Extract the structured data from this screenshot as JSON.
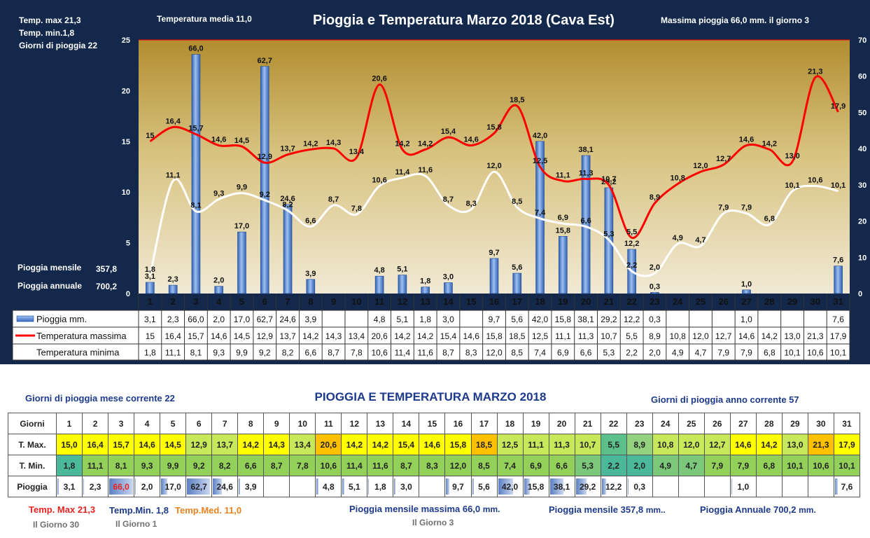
{
  "top_panel": {
    "title": "Pioggia e Temperatura Marzo 2018 (Cava Est)",
    "temp_max": "Temp. max  21,3",
    "temp_min": "Temp.  min.1,8",
    "rain_days": "Giorni  di pioggia   22",
    "temp_avg": "Temperatura media  11,0",
    "max_rain": "Massima pioggia  66,0 mm.  il giorno   3",
    "monthly_rain_label": "Pioggia mensile",
    "monthly_rain_value": "357,8",
    "annual_rain_label": "Pioggia annuale",
    "annual_rain_value": "700,2"
  },
  "chart_data": {
    "type": "bar",
    "title": "Pioggia e Temperatura Marzo 2018 (Cava Est)",
    "x": [
      "1",
      "2",
      "3",
      "4",
      "5",
      "6",
      "7",
      "8",
      "9",
      "10",
      "11",
      "12",
      "13",
      "14",
      "15",
      "16",
      "17",
      "18",
      "19",
      "20",
      "21",
      "22",
      "23",
      "24",
      "25",
      "26",
      "27",
      "28",
      "29",
      "30",
      "31"
    ],
    "left_axis": {
      "min": 0,
      "max": 25,
      "ticks": [
        "0",
        "5",
        "10",
        "15",
        "20",
        "25"
      ]
    },
    "right_axis": {
      "min": 0,
      "max": 70,
      "ticks": [
        "0",
        "10",
        "20",
        "30",
        "40",
        "50",
        "60",
        "70"
      ]
    },
    "series": [
      {
        "name": "Pioggia mm.",
        "type": "bar",
        "axis": "right",
        "color": "#4f7fd0",
        "values": [
          3.1,
          2.3,
          66.0,
          2.0,
          17.0,
          62.7,
          24.6,
          3.9,
          null,
          null,
          4.8,
          5.1,
          1.8,
          3.0,
          null,
          9.7,
          5.6,
          42.0,
          15.8,
          38.1,
          29.2,
          12.2,
          0.3,
          null,
          null,
          null,
          1.0,
          null,
          null,
          null,
          7.6
        ],
        "labels": [
          "3,1",
          "2,3",
          "66,0",
          "2,0",
          "17,0",
          "62,7",
          "24,6",
          "3,9",
          "",
          "",
          "4,8",
          "5,1",
          "1,8",
          "3,0",
          "",
          "9,7",
          "5,6",
          "42,0",
          "15,8",
          "38,1",
          "29,2",
          "12,2",
          "0,3",
          "",
          "",
          "",
          "1,0",
          "",
          "",
          "",
          "7,6"
        ]
      },
      {
        "name": "Temperatura massima",
        "type": "line",
        "axis": "left",
        "color": "#ff0000",
        "values": [
          15,
          16.4,
          15.7,
          14.6,
          14.5,
          12.9,
          13.7,
          14.2,
          14.3,
          13.4,
          20.6,
          14.2,
          14.2,
          15.4,
          14.6,
          15.8,
          18.5,
          12.5,
          11.1,
          11.3,
          10.7,
          5.5,
          8.9,
          10.8,
          12.0,
          12.7,
          14.6,
          14.2,
          13.0,
          21.3,
          17.9
        ],
        "labels": [
          "15",
          "16,4",
          "15,7",
          "14,6",
          "14,5",
          "12,9",
          "13,7",
          "14,2",
          "14,3",
          "13,4",
          "20,6",
          "14,2",
          "14,2",
          "15,4",
          "14,6",
          "15,8",
          "18,5",
          "12,5",
          "11,1",
          "11,3",
          "10,7",
          "5,5",
          "8,9",
          "10,8",
          "12,0",
          "12,7",
          "14,6",
          "14,2",
          "13,0",
          "21,3",
          "17,9"
        ]
      },
      {
        "name": "Temperatura minima",
        "type": "line",
        "axis": "left",
        "color": "#ffffff",
        "values": [
          1.8,
          11.1,
          8.1,
          9.3,
          9.9,
          9.2,
          8.2,
          6.6,
          8.7,
          7.8,
          10.6,
          11.4,
          11.6,
          8.7,
          8.3,
          12.0,
          8.5,
          7.4,
          6.9,
          6.6,
          5.3,
          2.2,
          2.0,
          4.9,
          4.7,
          7.9,
          7.9,
          6.8,
          10.1,
          10.6,
          10.1
        ],
        "labels": [
          "1,8",
          "11,1",
          "8,1",
          "9,3",
          "9,9",
          "9,2",
          "8,2",
          "6,6",
          "8,7",
          "7,8",
          "10,6",
          "11,4",
          "11,6",
          "8,7",
          "8,3",
          "12,0",
          "8,5",
          "7,4",
          "6,9",
          "6,6",
          "5,3",
          "2,2",
          "2,0",
          "4,9",
          "4,7",
          "7,9",
          "7,9",
          "6,8",
          "10,1",
          "10,6",
          "10,1"
        ]
      }
    ],
    "colors": {
      "background": "#13284a",
      "plot_top": "#b18d2f",
      "plot_bottom": "#f1e9d4",
      "rain": "#4f7fd0",
      "tmax": "#ff0000",
      "tmin": "#ffffff"
    }
  },
  "bottom_panel": {
    "title": "PIOGGIA E TEMPERATURA MARZO 2018",
    "rain_days_month": "Giorni di pioggia  mese corrente    22",
    "rain_days_year": "Giorni di pioggia  anno corrente   57",
    "row_labels": {
      "days": "Giorni",
      "tmax": "T. Max.",
      "tmin": "T. Min.",
      "rain": "Pioggia"
    },
    "tmax_cells": [
      "15,0",
      "16,4",
      "15,7",
      "14,6",
      "14,5",
      "12,9",
      "13,7",
      "14,2",
      "14,3",
      "13,4",
      "20,6",
      "14,2",
      "14,2",
      "15,4",
      "14,6",
      "15,8",
      "18,5",
      "12,5",
      "11,1",
      "11,3",
      "10,7",
      "5,5",
      "8,9",
      "10,8",
      "12,0",
      "12,7",
      "14,6",
      "14,2",
      "13,0",
      "21,3",
      "17,9"
    ],
    "tmin_cells": [
      "1,8",
      "11,1",
      "8,1",
      "9,3",
      "9,9",
      "9,2",
      "8,2",
      "6,6",
      "8,7",
      "7,8",
      "10,6",
      "11,4",
      "11,6",
      "8,7",
      "8,3",
      "12,0",
      "8,5",
      "7,4",
      "6,9",
      "6,6",
      "5,3",
      "2,2",
      "2,0",
      "4,9",
      "4,7",
      "7,9",
      "7,9",
      "6,8",
      "10,1",
      "10,6",
      "10,1"
    ],
    "temp_max": "Temp. Max 21,3",
    "temp_max_day": "Il Giorno  30",
    "temp_min": "Temp.Min. 1,8",
    "temp_min_day": "Il Giorno 1",
    "temp_med": "Temp.Med. 11,0",
    "max_rain": "Pioggia mensile massima 66,0",
    "max_rain_unit": "mm.",
    "max_rain_day": "Il Giorno 3",
    "monthly_rain": "Pioggia mensile  357,8",
    "monthly_rain_unit": "mm..",
    "annual_rain": "Pioggia Annuale  700,2",
    "annual_rain_unit": "mm.",
    "colors": {
      "temp_max": "#e8231f",
      "temp_min": "#1d3a8c",
      "temp_med": "#e8831f",
      "header_blue": "#1d3a8c"
    }
  }
}
